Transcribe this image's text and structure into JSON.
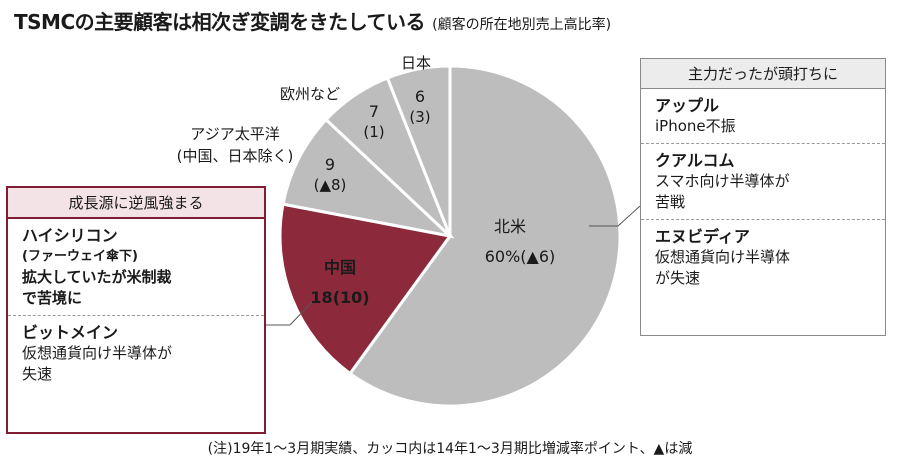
{
  "title": "TSMCの主要顧客は相次ぎ変調をきたしている",
  "subtitle": "(顧客の所在地別売上高比率)",
  "chart_data": {
    "type": "pie",
    "slices": [
      {
        "label": "北米",
        "value": 60,
        "change": "(▲6)",
        "value_text": "60%",
        "color": "#bdbdbd"
      },
      {
        "label": "中国",
        "value": 18,
        "change": "(10)",
        "value_text": "18",
        "color": "#8c2a3c"
      },
      {
        "label": "アジア太平洋\n(中国、日本除く)",
        "value": 9,
        "change": "(▲8)",
        "value_text": "9",
        "color": "#bdbdbd"
      },
      {
        "label": "欧州など",
        "value": 7,
        "change": "(1)",
        "value_text": "7",
        "color": "#bdbdbd"
      },
      {
        "label": "日本",
        "value": 6,
        "change": "(3)",
        "value_text": "6",
        "color": "#bdbdbd"
      }
    ]
  },
  "left_box": {
    "header": "成長源に逆風強まる",
    "entries": [
      {
        "name": "ハイシリコン",
        "sub": "(ファーウェイ傘下)",
        "desc": "拡大していたが米制裁\nで苦境に",
        "desc_bold": true
      },
      {
        "name": "ビットメイン",
        "sub": "",
        "desc": "仮想通貨向け半導体が\n失速",
        "desc_bold": false
      }
    ]
  },
  "right_box": {
    "header": "主力だったが頭打ちに",
    "entries": [
      {
        "name": "アップル",
        "desc": "iPhone不振"
      },
      {
        "name": "クアルコム",
        "desc": "スマホ向け半導体が\n苦戦"
      },
      {
        "name": "エヌビディア",
        "desc": "仮想通貨向け半導体\nが失速"
      }
    ]
  },
  "note": "(注)19年1～3月期実績、カッコ内は14年1～3月期比増減率ポイント、▲は減"
}
